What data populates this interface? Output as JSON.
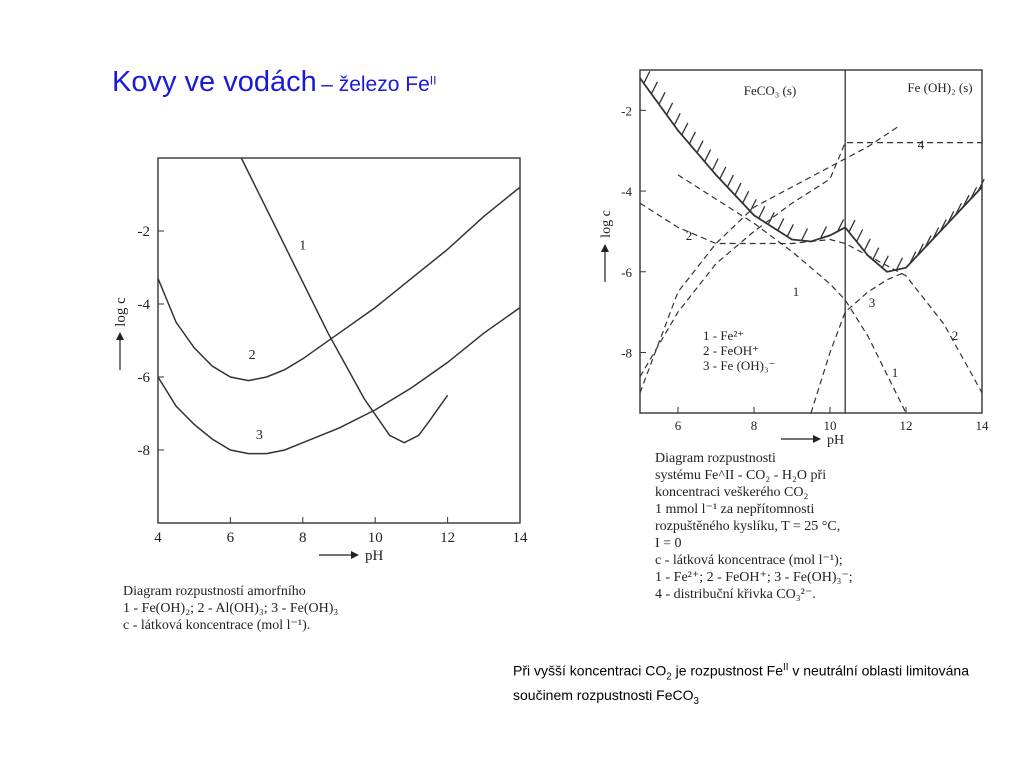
{
  "title": {
    "main": "Kovy ve vodách",
    "sub": "– železo Fe",
    "sup": "II"
  },
  "chart_data": [
    {
      "type": "line",
      "title": "",
      "xlabel": "pH",
      "ylabel": "log c",
      "xlim": [
        4,
        14
      ],
      "ylim": [
        0,
        -10
      ],
      "xticks": [
        "4",
        "6",
        "8",
        "10",
        "12",
        "14"
      ],
      "yticks": [
        "-2",
        "-4",
        "-6",
        "-8"
      ],
      "series": [
        {
          "name": "1",
          "x": [
            6.3,
            7.5,
            8.7,
            9.7,
            10.4,
            10.8,
            11.2,
            11.5,
            12.0
          ],
          "y": [
            0.0,
            -2.4,
            -4.8,
            -6.6,
            -7.6,
            -7.8,
            -7.6,
            -7.2,
            -6.5
          ]
        },
        {
          "name": "2",
          "x": [
            4.0,
            4.5,
            5.0,
            5.5,
            6.0,
            6.5,
            7.0,
            7.5,
            8.0,
            9.0,
            10.0,
            11.0,
            12.0,
            13.0,
            14.0
          ],
          "y": [
            -3.3,
            -4.5,
            -5.2,
            -5.7,
            -6.0,
            -6.1,
            -6.0,
            -5.8,
            -5.5,
            -4.8,
            -4.1,
            -3.3,
            -2.5,
            -1.6,
            -0.8
          ]
        },
        {
          "name": "3",
          "x": [
            4.0,
            4.5,
            5.0,
            5.5,
            6.0,
            6.5,
            7.0,
            7.5,
            8.0,
            9.0,
            10.0,
            11.0,
            12.0,
            13.0,
            14.0
          ],
          "y": [
            -6.0,
            -6.8,
            -7.3,
            -7.7,
            -8.0,
            -8.1,
            -8.1,
            -8.0,
            -7.8,
            -7.4,
            -6.9,
            -6.3,
            -5.6,
            -4.8,
            -4.1
          ]
        }
      ],
      "caption": [
        "Diagram rozpustností amorfního",
        "1 - Fe(OH)₂; 2 - Al(OH)₃; 3 - Fe(OH)₃",
        "c - látková koncentrace (mol l⁻¹)."
      ]
    },
    {
      "type": "line",
      "title": "",
      "xlabel": "pH",
      "ylabel": "log c",
      "xlim": [
        5,
        14
      ],
      "ylim": [
        -1,
        -9.5
      ],
      "xticks": [
        "6",
        "8",
        "10",
        "12",
        "14"
      ],
      "yticks": [
        "-2",
        "-4",
        "-6",
        "-8"
      ],
      "region_labels": [
        "FeCO₃ (s)",
        "Fe (OH)₂ (s)"
      ],
      "phase_boundary_pH": 10.4,
      "series": [
        {
          "name": "FeCO3 solubility",
          "style": "solid",
          "x": [
            5.0,
            6.0,
            7.0,
            8.0,
            9.0,
            9.5,
            10.0,
            10.4
          ],
          "y": [
            -1.2,
            -2.5,
            -3.6,
            -4.6,
            -5.2,
            -5.25,
            -5.1,
            -4.9
          ]
        },
        {
          "name": "Fe(OH)2 solubility",
          "style": "solid",
          "x": [
            10.4,
            11.0,
            11.5,
            12.0,
            13.0,
            14.0
          ],
          "y": [
            -4.9,
            -5.6,
            -6.0,
            -5.9,
            -4.9,
            -3.9
          ]
        },
        {
          "name": "1",
          "style": "dashed",
          "x": [
            5.0,
            6.0,
            7.0,
            8.0,
            9.0,
            10.0,
            11.0,
            11.8
          ],
          "y": [
            -9.0,
            -6.5,
            -5.3,
            -4.4,
            -3.9,
            -3.4,
            -2.9,
            -2.4
          ]
        },
        {
          "name": "1 - Fe2+",
          "style": "dashed",
          "x": [
            6.0,
            7.0,
            8.0,
            9.0,
            10.0,
            10.4,
            11.0,
            12.0
          ],
          "y": [
            -3.6,
            -4.2,
            -4.8,
            -5.5,
            -6.3,
            -6.7,
            -7.6,
            -9.5
          ]
        },
        {
          "name": "2",
          "style": "dashed",
          "x": [
            5.0,
            6.0,
            7.0,
            8.0,
            9.0,
            10.0,
            10.4,
            11.0,
            12.0,
            13.0,
            14.0
          ],
          "y": [
            -4.3,
            -4.9,
            -5.3,
            -5.3,
            -5.3,
            -5.2,
            -5.3,
            -5.6,
            -6.1,
            -7.3,
            -9.0
          ]
        },
        {
          "name": "3",
          "style": "dashed",
          "x": [
            9.5,
            10.0,
            10.4,
            11.0,
            11.5,
            12.0
          ],
          "y": [
            -9.5,
            -8.0,
            -7.0,
            -6.5,
            -6.2,
            -6.0
          ]
        },
        {
          "name": "4",
          "style": "dashed",
          "x": [
            5.0,
            6.0,
            7.0,
            8.0,
            9.0,
            10.0,
            10.4,
            11.0,
            12.0,
            13.0,
            14.0
          ],
          "y": [
            -8.6,
            -7.0,
            -5.8,
            -5.0,
            -4.3,
            -3.7,
            -2.8,
            -2.8,
            -2.8,
            -2.8,
            -2.8
          ]
        }
      ],
      "legend": [
        "1 - Fe²⁺",
        "2 - FeOH⁺",
        "3 - Fe (OH)₃⁻"
      ],
      "caption": [
        "Diagram rozpustnosti",
        "systému Fe^II - CO₂ - H₂O při",
        "koncentraci veškerého CO₂",
        "1 mmol l⁻¹ za nepřítomnosti",
        "rozpuštěného kyslíku, T = 25 °C,",
        "I = 0",
        "c - látková koncentrace (mol l⁻¹);",
        "1 - Fe²⁺; 2 - FeOH⁺; 3 - Fe(OH)₃⁻;",
        "4 - distribuční křivka CO₃²⁻."
      ]
    }
  ],
  "note": {
    "p1": "Při vyšší koncentraci CO",
    "sub1": "2",
    "p2": " je rozpustnost Fe",
    "sup1": "II",
    "p3": " v neutrální oblasti limitována součinem rozpustnosti FeCO",
    "sub2": "3"
  }
}
